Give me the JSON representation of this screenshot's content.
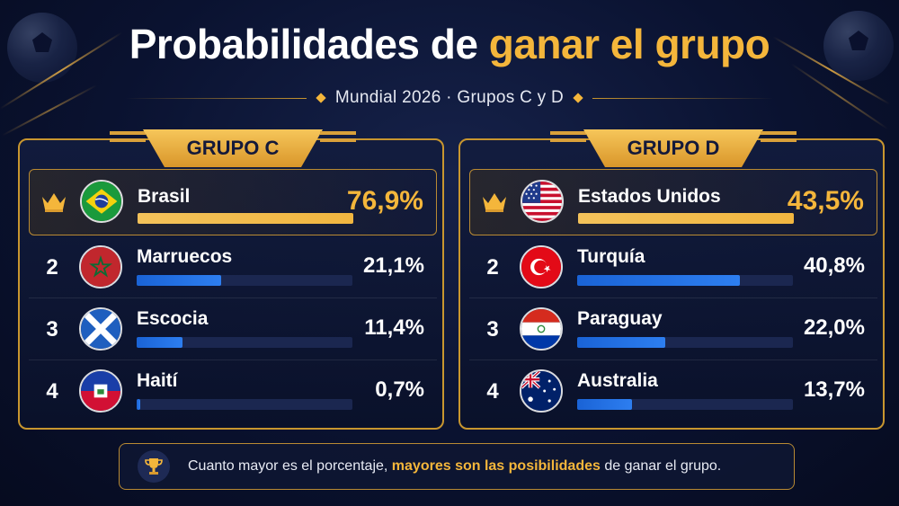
{
  "header": {
    "title_part1": "Probabilidades de",
    "title_highlight": "ganar el grupo",
    "subtitle": "Mundial 2026 · Grupos C y D"
  },
  "colors": {
    "accent": "#f4b63b",
    "bar": "#2d7ef0",
    "background": "#0a1230"
  },
  "groups": [
    {
      "label": "GRUPO C",
      "teams": [
        {
          "rank": "",
          "name": "Brasil",
          "pct": "76,9%",
          "value": 76.9,
          "flag": "brazil-flag-icon"
        },
        {
          "rank": "2",
          "name": "Marruecos",
          "pct": "21,1%",
          "value": 21.1,
          "flag": "morocco-flag-icon"
        },
        {
          "rank": "3",
          "name": "Escocia",
          "pct": "11,4%",
          "value": 11.4,
          "flag": "scotland-flag-icon"
        },
        {
          "rank": "4",
          "name": "Haití",
          "pct": "0,7%",
          "value": 0.7,
          "flag": "haiti-flag-icon"
        }
      ]
    },
    {
      "label": "GRUPO D",
      "teams": [
        {
          "rank": "",
          "name": "Estados Unidos",
          "pct": "43,5%",
          "value": 43.5,
          "flag": "usa-flag-icon"
        },
        {
          "rank": "2",
          "name": "Turquía",
          "pct": "40,8%",
          "value": 40.8,
          "flag": "turkey-flag-icon"
        },
        {
          "rank": "3",
          "name": "Paraguay",
          "pct": "22,0%",
          "value": 22.0,
          "flag": "paraguay-flag-icon"
        },
        {
          "rank": "4",
          "name": "Australia",
          "pct": "13,7%",
          "value": 13.7,
          "flag": "australia-flag-icon"
        }
      ]
    }
  ],
  "footer": {
    "text_before": "Cuanto mayor es el porcentaje,",
    "text_highlight": "mayores son las posibilidades",
    "text_after": "de ganar el grupo."
  }
}
